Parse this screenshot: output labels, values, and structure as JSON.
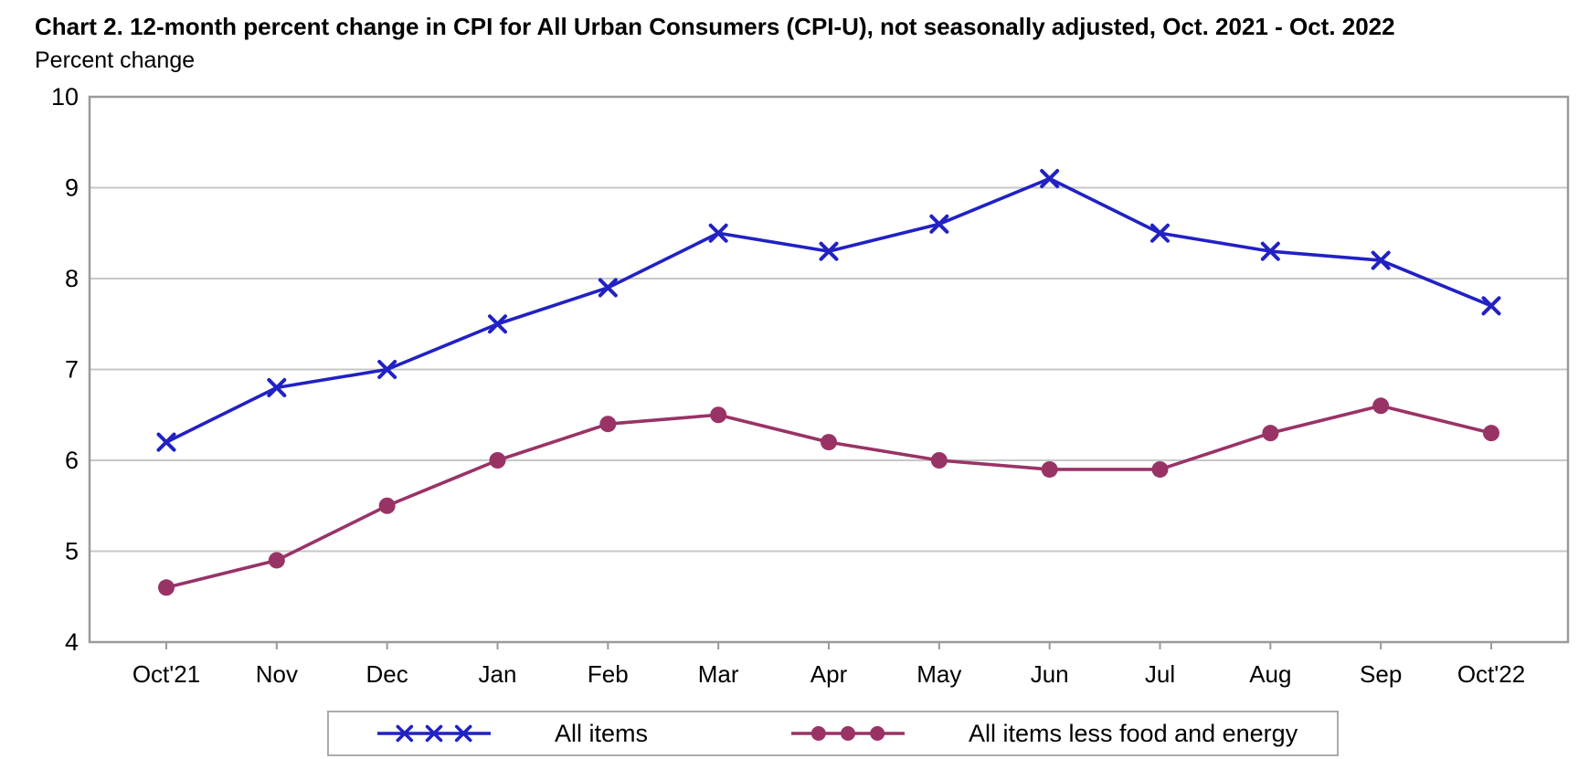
{
  "header": {
    "title": "Chart 2. 12-month percent change in CPI for All Urban Consumers (CPI-U), not seasonally adjusted, Oct. 2021 - Oct. 2022",
    "axis_title": "Percent change"
  },
  "colors": {
    "all_items_line": "#2121C4",
    "core_line": "#993366",
    "gridline": "#C7C7C7",
    "plot_border": "#9A9A9A",
    "text": "#000000"
  },
  "chart_data": {
    "type": "line",
    "title": "Chart 2. 12-month percent change in CPI for All Urban Consumers (CPI-U), not seasonally adjusted, Oct. 2021 - Oct. 2022",
    "xlabel": "",
    "ylabel": "Percent change",
    "ylim": [
      4,
      10
    ],
    "yticks": [
      4,
      5,
      6,
      7,
      8,
      9,
      10
    ],
    "grid": true,
    "legend_position": "bottom",
    "categories": [
      "Oct'21",
      "Nov",
      "Dec",
      "Jan",
      "Feb",
      "Mar",
      "Apr",
      "May",
      "Jun",
      "Jul",
      "Aug",
      "Sep",
      "Oct'22"
    ],
    "series": [
      {
        "name": "All items",
        "marker": "x",
        "color": "#2121C4",
        "values": [
          6.2,
          6.8,
          7.0,
          7.5,
          7.9,
          8.5,
          8.3,
          8.6,
          9.1,
          8.5,
          8.3,
          8.2,
          7.7
        ]
      },
      {
        "name": "All items less food and energy",
        "marker": "circle",
        "color": "#993366",
        "values": [
          4.6,
          4.9,
          5.5,
          6.0,
          6.4,
          6.5,
          6.2,
          6.0,
          5.9,
          5.9,
          6.3,
          6.6,
          6.3
        ]
      }
    ]
  }
}
